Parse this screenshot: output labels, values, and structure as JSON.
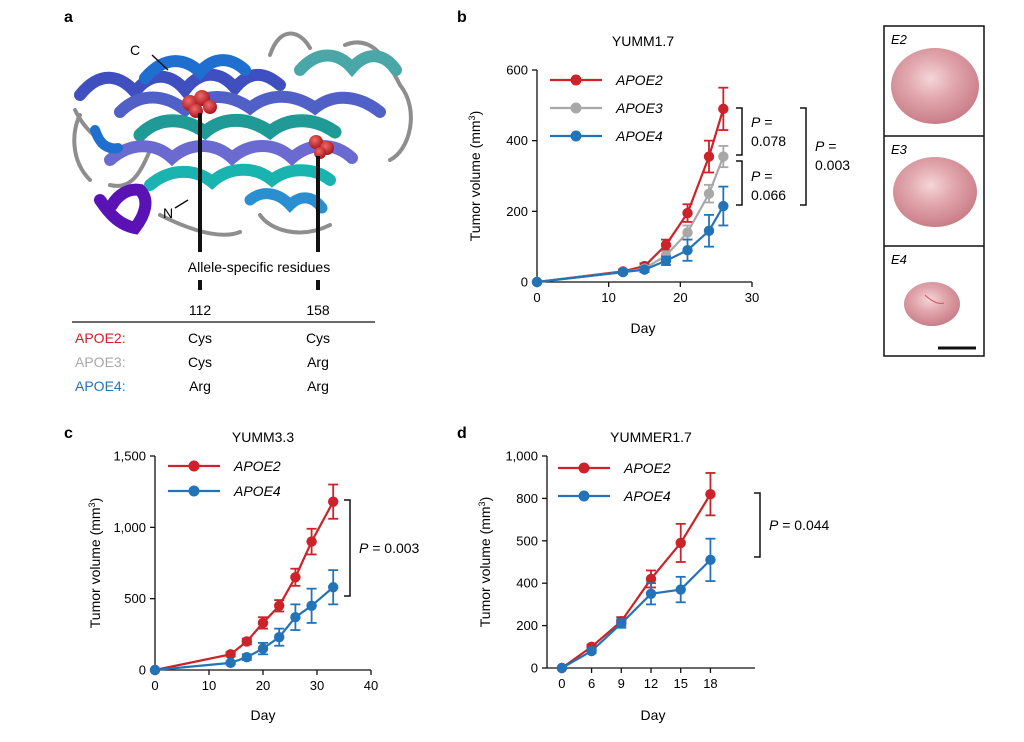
{
  "panel_letters": {
    "a": "a",
    "b": "b",
    "c": "c",
    "d": "d"
  },
  "panel_a": {
    "label_c": "C",
    "label_n": "N",
    "caption": "Allele-specific residues",
    "positions": [
      "112",
      "158"
    ],
    "table": [
      {
        "name": "APOE2:",
        "color": "#cc2229",
        "res112": "Cys",
        "res158": "Cys"
      },
      {
        "name": "APOE3:",
        "color": "#a8a8a8",
        "res112": "Cys",
        "res158": "Arg"
      },
      {
        "name": "APOE4:",
        "color": "#2373b8",
        "res112": "Arg",
        "res158": "Arg"
      }
    ],
    "sphere_color": "#cc2229"
  },
  "colors": {
    "APOE2": "#cc2229",
    "APOE3": "#a8a8a8",
    "APOE4": "#2373b8"
  },
  "tumor_labels": [
    "E2",
    "E3",
    "E4"
  ],
  "chart_data": [
    {
      "panel": "b",
      "type": "line",
      "title": "YUMM1.7",
      "xlabel": "Day",
      "ylabel": "Tumor volume (mm3)",
      "xlim": [
        0,
        30
      ],
      "ylim": [
        0,
        600
      ],
      "xticks": [
        "0",
        "10",
        "20",
        "30"
      ],
      "yticks": [
        "0",
        "200",
        "400",
        "600"
      ],
      "legend": "top-left",
      "series": [
        {
          "name": "APOE2",
          "x": [
            0,
            12,
            15,
            18,
            21,
            24,
            26
          ],
          "y": [
            0,
            30,
            45,
            105,
            195,
            355,
            490
          ],
          "err": [
            0,
            5,
            8,
            15,
            25,
            45,
            60
          ]
        },
        {
          "name": "APOE3",
          "x": [
            0,
            12,
            15,
            18,
            21,
            24,
            26
          ],
          "y": [
            0,
            28,
            38,
            75,
            140,
            250,
            355
          ],
          "err": [
            0,
            5,
            7,
            12,
            20,
            25,
            30
          ]
        },
        {
          "name": "APOE4",
          "x": [
            0,
            12,
            15,
            18,
            21,
            24,
            26
          ],
          "y": [
            0,
            28,
            35,
            60,
            90,
            145,
            215
          ],
          "err": [
            0,
            5,
            7,
            12,
            30,
            45,
            55
          ]
        }
      ],
      "annotations": [
        {
          "text": "P =",
          "text2": "0.078"
        },
        {
          "text": "P =",
          "text2": "0.066"
        },
        {
          "text": "P =",
          "text2": "0.003"
        }
      ]
    },
    {
      "panel": "c",
      "type": "line",
      "title": "YUMM3.3",
      "xlabel": "Day",
      "ylabel": "Tumor volume (mm3)",
      "xlim": [
        0,
        40
      ],
      "ylim": [
        0,
        1500
      ],
      "xticks": [
        "0",
        "10",
        "20",
        "30",
        "40"
      ],
      "yticks": [
        "0",
        "500",
        "1,000",
        "1,500"
      ],
      "legend": "top-left",
      "series": [
        {
          "name": "APOE2",
          "x": [
            0,
            14,
            17,
            20,
            23,
            26,
            29,
            33
          ],
          "y": [
            0,
            110,
            200,
            330,
            450,
            650,
            900,
            1180
          ],
          "err": [
            0,
            15,
            20,
            40,
            40,
            60,
            90,
            120
          ]
        },
        {
          "name": "APOE4",
          "x": [
            0,
            14,
            17,
            20,
            23,
            26,
            29,
            33
          ],
          "y": [
            0,
            50,
            90,
            150,
            230,
            370,
            450,
            580
          ],
          "err": [
            0,
            10,
            20,
            40,
            60,
            90,
            120,
            120
          ]
        }
      ],
      "annotations": [
        {
          "text": "P",
          "text2": " = 0.003"
        }
      ]
    },
    {
      "panel": "d",
      "type": "line",
      "title": "YUMMER1.7",
      "xlabel": "Day",
      "ylabel": "Tumor volume (mm3)",
      "xlim": [
        -1.5,
        19.5
      ],
      "ylim": [
        0,
        1000
      ],
      "xticks": [
        "0",
        "6",
        "9",
        "12",
        "15",
        "18"
      ],
      "yticks": [
        "0",
        "200",
        "400",
        "500",
        "800",
        "1,000"
      ],
      "legend": "top-left",
      "series": [
        {
          "name": "APOE2",
          "x": [
            0,
            3,
            6,
            9,
            12,
            15
          ],
          "y": [
            0,
            100,
            220,
            420,
            590,
            820
          ],
          "err": [
            0,
            10,
            20,
            40,
            90,
            100
          ]
        },
        {
          "name": "APOE4",
          "x": [
            0,
            3,
            6,
            9,
            12,
            15
          ],
          "y": [
            0,
            80,
            210,
            350,
            370,
            510
          ],
          "err": [
            0,
            10,
            20,
            50,
            60,
            100
          ]
        }
      ],
      "annotations": [
        {
          "text": "P",
          "text2": " = 0.044"
        }
      ]
    }
  ]
}
